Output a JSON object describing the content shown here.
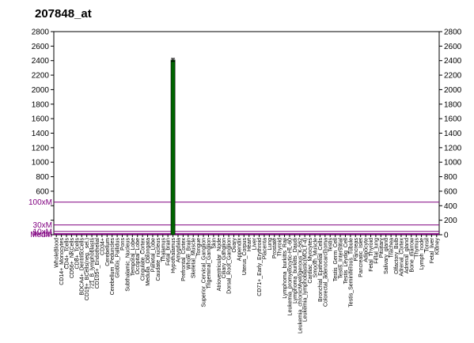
{
  "chart_data": {
    "type": "bar",
    "title": "207848_at",
    "xlabel": "",
    "ylabel": "",
    "ylim": [
      0,
      2800
    ],
    "y_ticks": [
      0,
      200,
      400,
      600,
      800,
      1000,
      1200,
      1400,
      1600,
      1800,
      2000,
      2200,
      2400,
      2600,
      2800
    ],
    "right_tick_labels": [
      "0",
      "200",
      "400",
      "600",
      "800",
      "1000",
      "1200",
      "1400",
      "1600",
      "1800",
      "2000",
      "2200",
      "2400",
      "2600",
      "2800"
    ],
    "left_tick_labels": [
      "",
      "",
      "",
      "600",
      "800",
      "1000",
      "1200",
      "1400",
      "1600",
      "1800",
      "2000",
      "2200",
      "2400",
      "2600",
      "2800"
    ],
    "reference_lines": [
      {
        "label": "100xM",
        "value": 450
      },
      {
        "label": "30xM",
        "value": 135
      },
      {
        "label": "10xM",
        "value": 45
      },
      {
        "label": "Mean",
        "value": 15
      },
      {
        "label": "MedM",
        "value": 5
      }
    ],
    "grid": "reference-lines-only",
    "bar_color": "#006400",
    "ref_color": "#800080",
    "categories": [
      "WholeBlood",
      "CD14+_Monocytes",
      "CD4+_Tcells",
      "CD56+_NKCells",
      "CD8+_Tcells",
      "BDCA4+_DentriticCells",
      "CD19+_BCells(neg._sel.)",
      "721_B_lymphoblasts",
      "CD105+_Endothelial",
      "CD34+",
      "Cerebellum",
      "Cerebellum_Peduncles",
      "Globus_Pallidus",
      "Pons",
      "Subthalamic_Nucleus",
      "Temporal_Lobe",
      "Occipital_Lobe",
      "Cingulate_Cortex",
      "Medulla_Oblongata",
      "Parietal_Lobe",
      "Caudate_nucleus",
      "Thalamus",
      "Fetal_brain",
      "Hypothalamus",
      "Amygdala",
      "Prefrontal_Cortex",
      "Whole_Brain",
      "Skeletal_Muscle",
      "Tongue",
      "Superior_Cervical_Ganglion",
      "Trigeminal_Ganglion",
      "Skin",
      "Atrioventricular_Node",
      "Ciliary_Ganglion",
      "Dorsal_Root_Ganglion",
      "Ovary",
      "Appendix",
      "Uterus_Corpus",
      "Heart",
      "Liver",
      "CD71+_Early_Erythroid",
      "Placenta",
      "Lung",
      "Prostate",
      "Thyroid",
      "Lymphoma_burkitts_Raji",
      "Leukemia_promyelocytic-HL-60",
      "Lymphoma_burkitts_Daudi",
      "Leukemia_chronicMyelogenous_K-562",
      "Leukemia_lymphoblastic(MOLT-4)",
      "Cardiac_Myocytes",
      "Smooth_Muscle",
      "Bronchial_Epithelial_Cells",
      "Colorectal_adenocarcinoma",
      "Testis",
      "Testis_Germ_Cell",
      "Testis_Interstitial",
      "Testis_Leydig_Cell",
      "Testis_Seminiferous_Tubule",
      "Pancreas",
      "Pancreatic_Islet",
      "Adipocyte",
      "Fetal_Thyroid",
      "Fetal_lung",
      "Pituitary",
      "Salivary_gland",
      "Trachea",
      "Olfactory_Bulb",
      "Adrenal_Cortex",
      "Adrenal_gland",
      "Bone_marrow",
      "Thymus",
      "Lymph_node",
      "Tonsil",
      "Fetal_liver",
      "Kidney"
    ],
    "values": [
      0,
      0,
      0,
      0,
      0,
      0,
      0,
      0,
      0,
      0,
      0,
      0,
      0,
      0,
      0,
      0,
      0,
      0,
      0,
      0,
      0,
      0,
      0,
      2410,
      0,
      0,
      0,
      0,
      0,
      0,
      0,
      0,
      0,
      0,
      0,
      0,
      0,
      0,
      0,
      0,
      0,
      0,
      0,
      0,
      0,
      0,
      0,
      0,
      0,
      0,
      0,
      0,
      0,
      0,
      0,
      0,
      0,
      0,
      0,
      0,
      0,
      0,
      0,
      0,
      0,
      0,
      0,
      0,
      0,
      0,
      0,
      0,
      0,
      0,
      0,
      0
    ],
    "error": {
      "category": "Hypothalamus",
      "low": 2390,
      "high": 2430
    }
  }
}
